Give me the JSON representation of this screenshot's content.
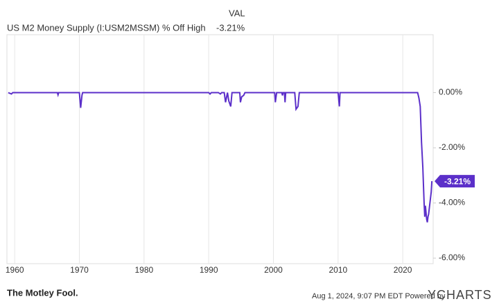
{
  "chart_data": {
    "type": "line",
    "header": "VAL",
    "series": [
      {
        "name": "US M2 Money Supply (I:USM2MSSM) % Off High",
        "color": "#5b2fc9",
        "x": [
          1959.0,
          1959.5,
          1959.7,
          1966.6,
          1966.7,
          1966.8,
          1970.0,
          1970.2,
          1970.4,
          1970.5,
          1990.0,
          1990.2,
          1990.4,
          1991.5,
          1991.8,
          1992.0,
          1992.4,
          1992.6,
          1992.9,
          1993.1,
          1993.4,
          1993.6,
          1994.8,
          1994.9,
          1995.1,
          1995.4,
          1995.6,
          2000.2,
          2000.3,
          2000.5,
          2001.3,
          2001.4,
          2001.5,
          2001.7,
          2001.8,
          2001.9,
          2003.3,
          2003.5,
          2003.8,
          2004.0,
          2010.0,
          2010.2,
          2010.3,
          2022.3,
          2022.5,
          2022.7,
          2022.9,
          2023.1,
          2023.3,
          2023.4,
          2023.5,
          2023.7,
          2023.8,
          2023.9,
          2024.0,
          2024.2,
          2024.4,
          2024.5
        ],
        "values": [
          0,
          -0.05,
          0,
          0,
          -0.08,
          0,
          0,
          -0.55,
          -0.1,
          0,
          0,
          -0.05,
          0,
          0,
          -0.05,
          0,
          0,
          -0.35,
          0,
          -0.3,
          -0.5,
          0,
          0,
          -0.35,
          -0.15,
          -0.1,
          0,
          0,
          -0.35,
          0,
          0,
          -0.1,
          0,
          0,
          -0.35,
          0,
          0,
          -0.6,
          -0.5,
          0,
          0,
          -0.5,
          0,
          0,
          -0.2,
          -0.5,
          -1.8,
          -2.7,
          -4.0,
          -4.5,
          -4.1,
          -4.6,
          -4.7,
          -4.5,
          -4.4,
          -4.0,
          -3.6,
          -3.21
        ],
        "value_labels": [
          null,
          null,
          null,
          null,
          null,
          null,
          null,
          null,
          null,
          null,
          null,
          null,
          null,
          null,
          null,
          null,
          null,
          null,
          null,
          null,
          null,
          null,
          null,
          null,
          null,
          null,
          null,
          null,
          null,
          null,
          null,
          null,
          null,
          null,
          null,
          null,
          null,
          null,
          null,
          null,
          null,
          null,
          null,
          null,
          null,
          null,
          null,
          null,
          null,
          null,
          null,
          null,
          null,
          null,
          null,
          null,
          null,
          "-3.21%"
        ]
      }
    ],
    "xlim": [
      1958.8,
      2024.7
    ],
    "xticks": [
      1960,
      1970,
      1980,
      1990,
      2000,
      2010,
      2020
    ],
    "ylim": [
      -6.2,
      2.1
    ],
    "yticks": [
      {
        "value": 0,
        "label": "0.00%"
      },
      {
        "value": -2,
        "label": "-2.00%"
      },
      {
        "value": -4,
        "label": "-4.00%"
      },
      {
        "value": -6,
        "label": "-6.00%"
      }
    ],
    "grid": true
  },
  "footer": {
    "brand": "The Motley Fool.",
    "timestamp": "Aug 1, 2024, 9:07 PM EDT Powered by",
    "logo": "YCHARTS"
  }
}
